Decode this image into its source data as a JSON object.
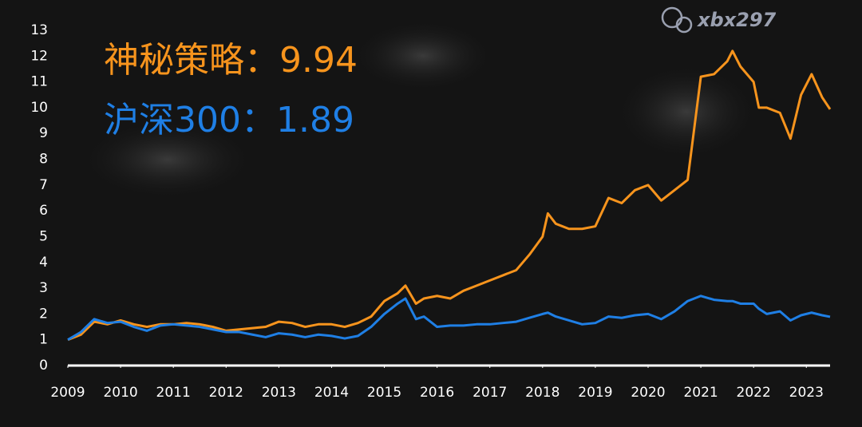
{
  "chart_data": {
    "type": "line",
    "watermark": "xbx297",
    "annotations": [
      {
        "text": "神秘策略：9.94",
        "color": "#f7941d"
      },
      {
        "text": "沪深300：1.89",
        "color": "#1f7fe5"
      }
    ],
    "x": [
      2009,
      2009.25,
      2009.5,
      2009.75,
      2010,
      2010.25,
      2010.5,
      2010.75,
      2011,
      2011.25,
      2011.5,
      2011.75,
      2012,
      2012.25,
      2012.5,
      2012.75,
      2013,
      2013.25,
      2013.5,
      2013.75,
      2014,
      2014.25,
      2014.5,
      2014.75,
      2015,
      2015.25,
      2015.4,
      2015.6,
      2015.75,
      2016,
      2016.25,
      2016.5,
      2016.75,
      2017,
      2017.25,
      2017.5,
      2017.75,
      2018,
      2018.1,
      2018.25,
      2018.5,
      2018.75,
      2019,
      2019.25,
      2019.5,
      2019.75,
      2020,
      2020.25,
      2020.5,
      2020.75,
      2021,
      2021.25,
      2021.5,
      2021.6,
      2021.75,
      2022,
      2022.1,
      2022.25,
      2022.5,
      2022.7,
      2022.9,
      2023.1,
      2023.3,
      2023.45
    ],
    "series": [
      {
        "name": "神秘策略",
        "color": "#f7941d",
        "values": [
          1.0,
          1.2,
          1.7,
          1.6,
          1.75,
          1.6,
          1.5,
          1.6,
          1.6,
          1.65,
          1.6,
          1.5,
          1.35,
          1.4,
          1.45,
          1.5,
          1.7,
          1.65,
          1.5,
          1.6,
          1.6,
          1.5,
          1.65,
          1.9,
          2.5,
          2.8,
          3.1,
          2.4,
          2.6,
          2.7,
          2.6,
          2.9,
          3.1,
          3.3,
          3.5,
          3.7,
          4.3,
          5.0,
          5.9,
          5.5,
          5.3,
          5.3,
          5.4,
          6.5,
          6.3,
          6.8,
          7.0,
          6.4,
          6.8,
          7.2,
          11.2,
          11.3,
          11.8,
          12.2,
          11.6,
          11.0,
          10.0,
          10.0,
          9.8,
          8.8,
          10.5,
          11.3,
          10.4,
          9.94
        ]
      },
      {
        "name": "沪深300",
        "color": "#1f7fe5",
        "values": [
          1.0,
          1.3,
          1.8,
          1.65,
          1.7,
          1.5,
          1.35,
          1.55,
          1.6,
          1.55,
          1.5,
          1.4,
          1.3,
          1.3,
          1.2,
          1.1,
          1.25,
          1.2,
          1.1,
          1.2,
          1.15,
          1.05,
          1.15,
          1.5,
          2.0,
          2.4,
          2.6,
          1.8,
          1.9,
          1.5,
          1.55,
          1.55,
          1.6,
          1.6,
          1.65,
          1.7,
          1.85,
          2.0,
          2.05,
          1.9,
          1.75,
          1.6,
          1.65,
          1.9,
          1.85,
          1.95,
          2.0,
          1.8,
          2.1,
          2.5,
          2.7,
          2.55,
          2.5,
          2.5,
          2.4,
          2.4,
          2.2,
          2.0,
          2.1,
          1.75,
          1.95,
          2.05,
          1.95,
          1.89
        ]
      }
    ],
    "xlim": [
      2009,
      2023.45
    ],
    "xticks": [
      2009,
      2010,
      2011,
      2012,
      2013,
      2014,
      2015,
      2016,
      2017,
      2018,
      2019,
      2020,
      2021,
      2022,
      2023
    ],
    "ylim": [
      0,
      13
    ],
    "yticks": [
      0,
      1,
      2,
      3,
      4,
      5,
      6,
      7,
      8,
      9,
      10,
      11,
      12,
      13
    ],
    "grid": false
  }
}
